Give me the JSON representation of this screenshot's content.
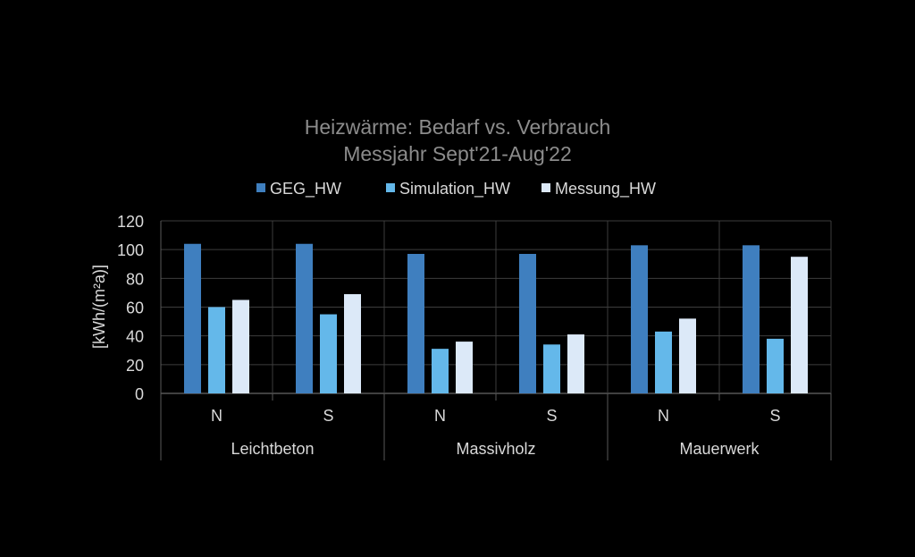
{
  "chart_data": {
    "type": "bar",
    "title": "Heizwärme: Bedarf vs. Verbrauch",
    "subtitle": "Messjahr Sept'21-Aug'22",
    "ylabel": "[kWh/(m²a)]",
    "xlabel": "",
    "ylim": [
      0,
      120
    ],
    "yticks": [
      0,
      20,
      40,
      60,
      80,
      100,
      120
    ],
    "grid": true,
    "legend_position": "top",
    "groups": [
      "Leichtbeton",
      "Massivholz",
      "Mauerwerk"
    ],
    "categories": [
      "N",
      "S",
      "N",
      "S",
      "N",
      "S"
    ],
    "series": [
      {
        "name": "GEG_HW",
        "color": "#3f7fbf",
        "values": [
          104,
          104,
          97,
          97,
          103,
          103
        ]
      },
      {
        "name": "Simulation_HW",
        "color": "#64b8ea",
        "values": [
          60,
          55,
          31,
          34,
          43,
          38
        ]
      },
      {
        "name": "Messung_HW",
        "color": "#dce9f8",
        "values": [
          65,
          69,
          36,
          41,
          52,
          95
        ]
      }
    ]
  }
}
